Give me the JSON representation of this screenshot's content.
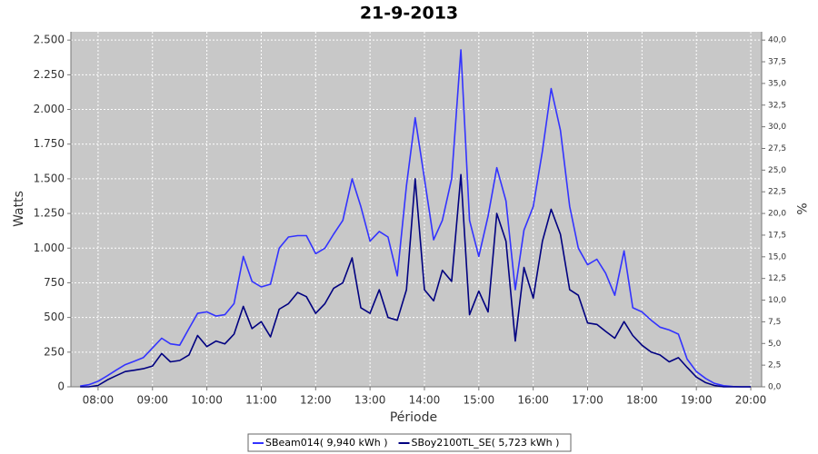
{
  "chart_data": {
    "type": "line",
    "title": "21-9-2013",
    "x_label": "Période",
    "y_label": "Watts",
    "y2_label": "%",
    "x": [
      7.67,
      7.83,
      8,
      8.17,
      8.33,
      8.5,
      8.67,
      8.83,
      9,
      9.17,
      9.33,
      9.5,
      9.67,
      9.83,
      10,
      10.17,
      10.33,
      10.5,
      10.67,
      10.83,
      11,
      11.17,
      11.33,
      11.5,
      11.67,
      11.83,
      12,
      12.17,
      12.33,
      12.5,
      12.67,
      12.83,
      13,
      13.17,
      13.33,
      13.5,
      13.67,
      13.83,
      14,
      14.17,
      14.33,
      14.5,
      14.67,
      14.83,
      15,
      15.17,
      15.33,
      15.5,
      15.67,
      15.83,
      16,
      16.17,
      16.33,
      16.5,
      16.67,
      16.83,
      17,
      17.17,
      17.33,
      17.5,
      17.67,
      17.83,
      18,
      18.17,
      18.33,
      18.5,
      18.67,
      18.83,
      19,
      19.17,
      19.33,
      19.5,
      19.67,
      19.83,
      20
    ],
    "series": [
      {
        "name": "SBeam014( 9,940 kWh )",
        "color": "#3333ff",
        "values": [
          5,
          15,
          40,
          80,
          120,
          160,
          185,
          210,
          280,
          350,
          310,
          300,
          420,
          530,
          540,
          510,
          520,
          600,
          940,
          760,
          720,
          740,
          1000,
          1080,
          1090,
          1090,
          960,
          1000,
          1100,
          1200,
          1500,
          1300,
          1050,
          1120,
          1080,
          800,
          1450,
          1940,
          1500,
          1060,
          1200,
          1500,
          2430,
          1200,
          940,
          1230,
          1580,
          1340,
          700,
          1130,
          1300,
          1700,
          2150,
          1850,
          1300,
          1000,
          880,
          920,
          820,
          660,
          980,
          570,
          540,
          480,
          430,
          410,
          380,
          200,
          110,
          60,
          25,
          8,
          2,
          0,
          0
        ]
      },
      {
        "name": "SBoy2100TL_SE( 5,723 kWh )",
        "color": "#000080",
        "values": [
          0,
          0,
          10,
          50,
          80,
          110,
          120,
          130,
          150,
          240,
          180,
          190,
          230,
          370,
          290,
          330,
          310,
          380,
          580,
          420,
          470,
          360,
          560,
          600,
          680,
          650,
          530,
          600,
          710,
          750,
          930,
          570,
          530,
          700,
          500,
          480,
          700,
          1500,
          700,
          620,
          840,
          760,
          1530,
          520,
          690,
          540,
          1250,
          1050,
          330,
          860,
          640,
          1050,
          1280,
          1100,
          700,
          660,
          460,
          450,
          400,
          350,
          470,
          370,
          300,
          250,
          230,
          180,
          210,
          140,
          70,
          30,
          10,
          0,
          0,
          0,
          0
        ]
      }
    ],
    "xlim": [
      7.5,
      20.2
    ],
    "xticks": [
      {
        "value": 8,
        "label": "08:00"
      },
      {
        "value": 9,
        "label": "09:00"
      },
      {
        "value": 10,
        "label": "10:00"
      },
      {
        "value": 11,
        "label": "11:00"
      },
      {
        "value": 12,
        "label": "12:00"
      },
      {
        "value": 13,
        "label": "13:00"
      },
      {
        "value": 14,
        "label": "14:00"
      },
      {
        "value": 15,
        "label": "15:00"
      },
      {
        "value": 16,
        "label": "16:00"
      },
      {
        "value": 17,
        "label": "17:00"
      },
      {
        "value": 18,
        "label": "18:00"
      },
      {
        "value": 19,
        "label": "19:00"
      },
      {
        "value": 20,
        "label": "20:00"
      }
    ],
    "ylim": [
      0,
      2560
    ],
    "yticks": [
      0,
      250,
      500,
      750,
      {
        "value": 1000,
        "label": "1.000"
      },
      {
        "value": 1250,
        "label": "1.250"
      },
      {
        "value": 1500,
        "label": "1.500"
      },
      {
        "value": 1750,
        "label": "1.750"
      },
      {
        "value": 2000,
        "label": "2.000"
      },
      {
        "value": 2250,
        "label": "2.250"
      },
      {
        "value": 2500,
        "label": "2.500"
      }
    ],
    "y2lim": [
      0,
      40.96
    ],
    "y2ticks": [
      {
        "value": 0,
        "label": "0,0"
      },
      {
        "value": 2.5,
        "label": "2,5"
      },
      {
        "value": 5,
        "label": "5,0"
      },
      {
        "value": 7.5,
        "label": "7,5"
      },
      {
        "value": 10,
        "label": "10,0"
      },
      {
        "value": 12.5,
        "label": "12,5"
      },
      {
        "value": 15,
        "label": "15,0"
      },
      {
        "value": 17.5,
        "label": "17,5"
      },
      {
        "value": 20,
        "label": "20,0"
      },
      {
        "value": 22.5,
        "label": "22,5"
      },
      {
        "value": 25,
        "label": "25,0"
      },
      {
        "value": 27.5,
        "label": "27,5"
      },
      {
        "value": 30,
        "label": "30,0"
      },
      {
        "value": 32.5,
        "label": "32,5"
      },
      {
        "value": 35,
        "label": "35,0"
      },
      {
        "value": 37.5,
        "label": "37,5"
      },
      {
        "value": 40,
        "label": "40,0"
      }
    ],
    "grid": true,
    "legend_position": "bottom",
    "background": "#c8c8c8"
  }
}
